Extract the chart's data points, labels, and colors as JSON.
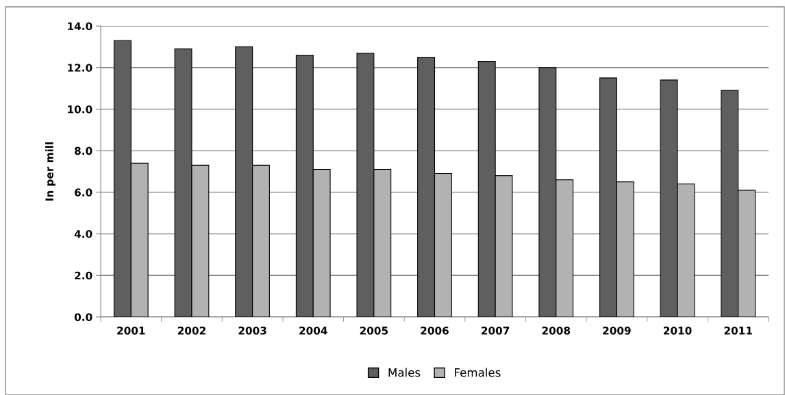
{
  "chart_data": {
    "type": "bar",
    "ylabel": "In per mill",
    "categories": [
      "2001",
      "2002",
      "2003",
      "2004",
      "2005",
      "2006",
      "2007",
      "2008",
      "2009",
      "2010",
      "2011"
    ],
    "series": [
      {
        "name": "Males",
        "color": "#5f5f5f",
        "values": [
          13.3,
          12.9,
          13.0,
          12.6,
          12.7,
          12.5,
          12.3,
          12.0,
          11.5,
          11.4,
          10.9
        ]
      },
      {
        "name": "Females",
        "color": "#b2b2b2",
        "values": [
          7.4,
          7.3,
          7.3,
          7.1,
          7.1,
          6.9,
          6.8,
          6.6,
          6.5,
          6.4,
          6.1
        ]
      }
    ],
    "ylim": [
      0,
      14
    ],
    "yticks": [
      {
        "value": 0,
        "label": "0.0"
      },
      {
        "value": 2,
        "label": "2.0"
      },
      {
        "value": 4,
        "label": "4.0"
      },
      {
        "value": 6,
        "label": "6.0"
      },
      {
        "value": 8,
        "label": "8.0"
      },
      {
        "value": 10,
        "label": "10.0"
      },
      {
        "value": 12,
        "label": "12.0"
      },
      {
        "value": 14,
        "label": "14.0"
      }
    ],
    "grid": "y",
    "legend": "bottom"
  }
}
